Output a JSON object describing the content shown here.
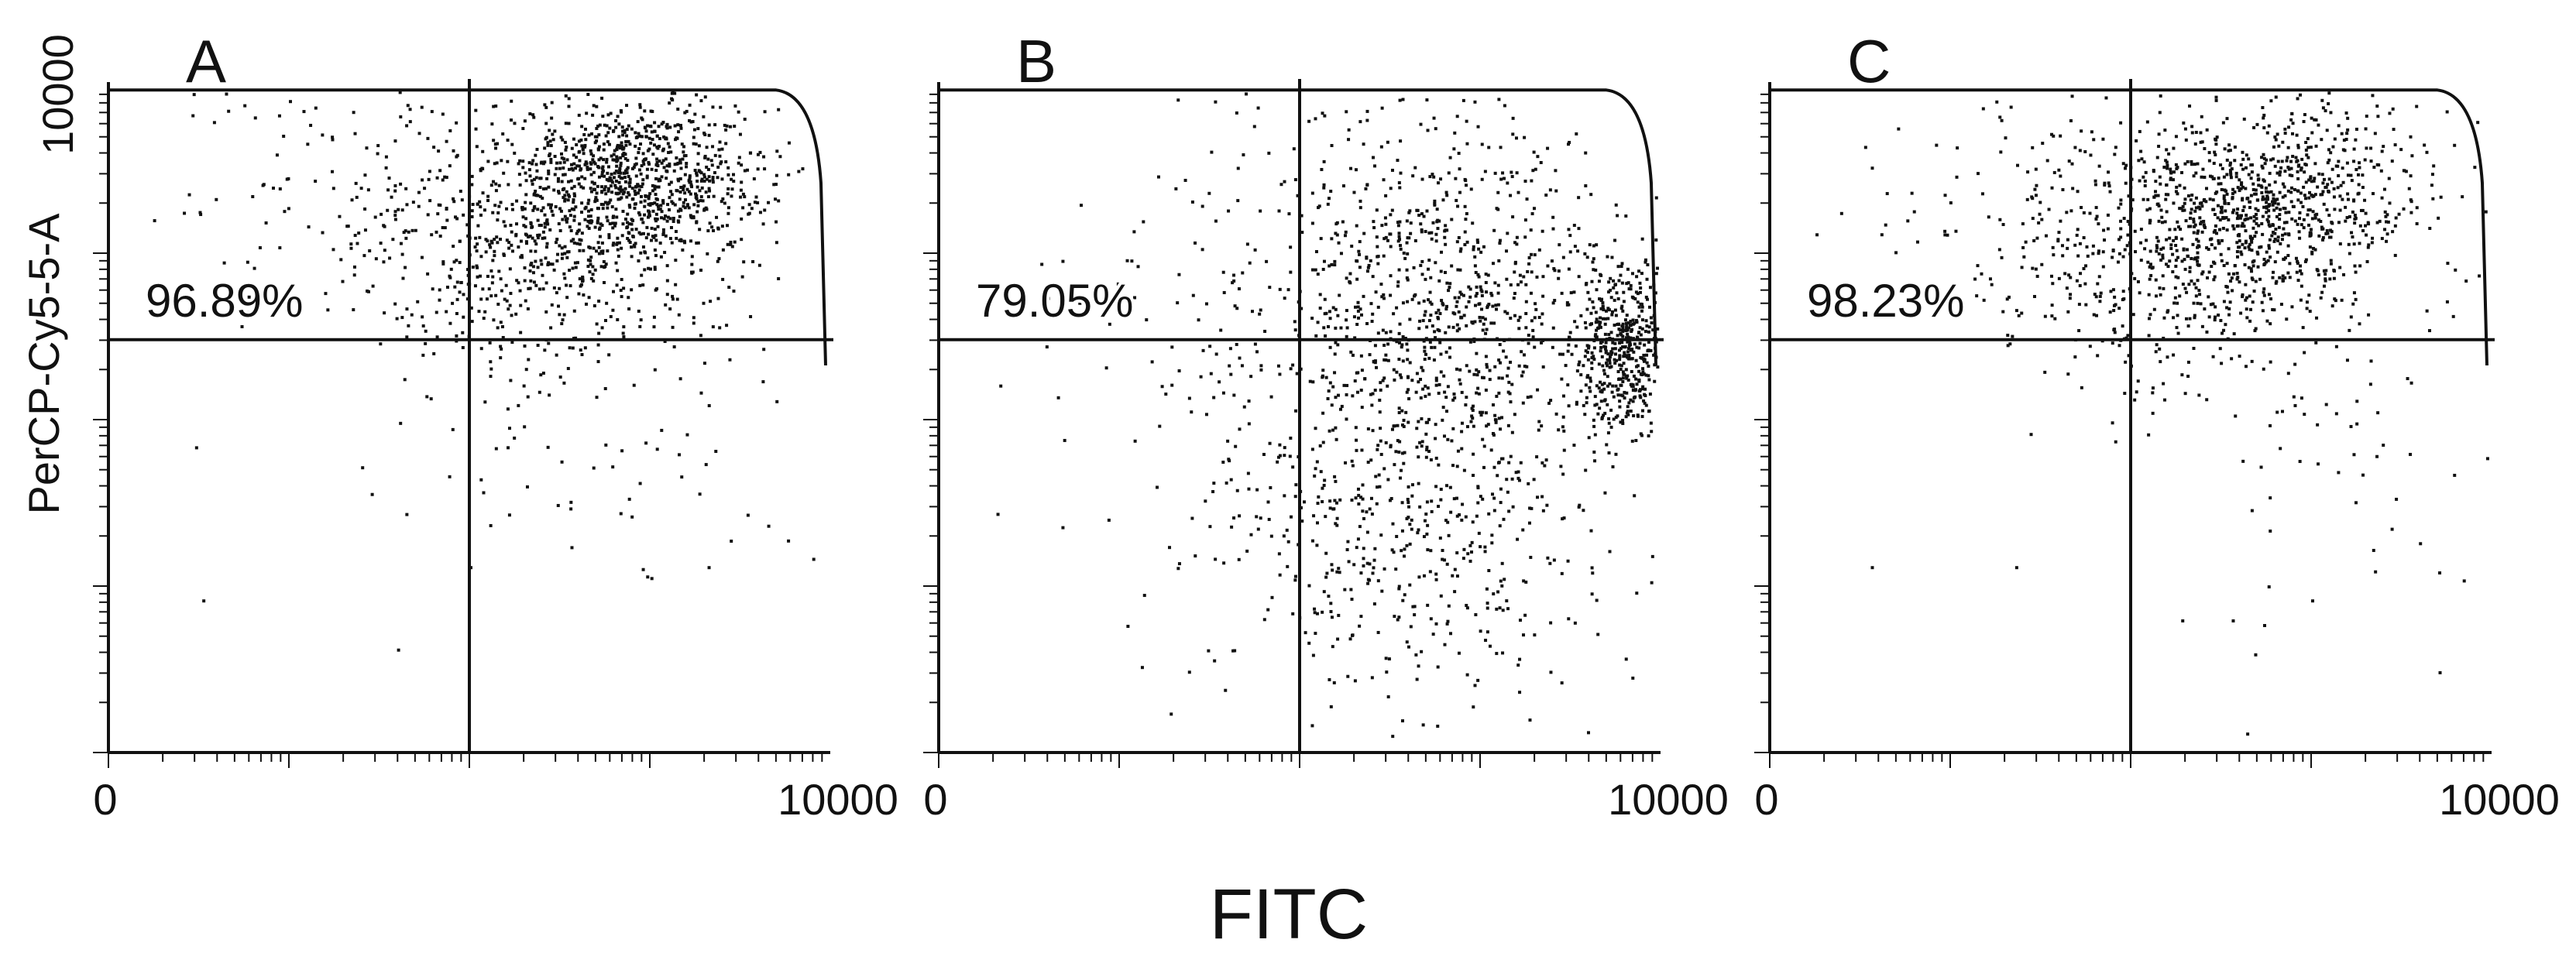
{
  "figure": {
    "xlabel": "FITC",
    "ylabel": "PerCP-Cy5-5-A"
  },
  "colors": {
    "axis": "#111111",
    "points": "#111111",
    "background": "#ffffff"
  },
  "chart_data": [
    {
      "type": "scatter",
      "panel": "A",
      "gate_percent": "96.89%",
      "xlim": [
        0,
        10000
      ],
      "ylim": [
        0,
        10000
      ],
      "x_tick_labels": [
        "0",
        "10000"
      ],
      "y_tick_labels": [
        "10000"
      ],
      "quadrant_divider": {
        "x": 5000,
        "y": 6200
      },
      "clusters": [
        {
          "cx": 7300,
          "cy": 8600,
          "sx": 900,
          "sy": 650,
          "n": 950
        },
        {
          "cx": 5900,
          "cy": 7600,
          "sx": 1300,
          "sy": 1000,
          "n": 520
        },
        {
          "cx": 4200,
          "cy": 8300,
          "sx": 1900,
          "sy": 1000,
          "n": 160
        },
        {
          "cx": 6800,
          "cy": 4800,
          "sx": 1500,
          "sy": 1200,
          "n": 70
        }
      ],
      "outliers": [
        [
          1200,
          4600
        ],
        [
          3500,
          4300
        ],
        [
          1300,
          2300
        ],
        [
          5000,
          2800
        ],
        [
          6400,
          3100
        ],
        [
          8300,
          2800
        ],
        [
          9400,
          3200
        ],
        [
          1100,
          8400
        ],
        [
          2500,
          9800
        ]
      ]
    },
    {
      "type": "scatter",
      "panel": "B",
      "gate_percent": "79.05%",
      "xlim": [
        0,
        10000
      ],
      "ylim": [
        0,
        10000
      ],
      "x_tick_labels": [
        "0",
        "10000"
      ],
      "quadrant_divider": {
        "x": 5000,
        "y": 6200
      },
      "clusters": [
        {
          "cx": 9500,
          "cy": 6000,
          "sx": 350,
          "sy": 650,
          "n": 480
        },
        {
          "cx": 7000,
          "cy": 6800,
          "sx": 1400,
          "sy": 1400,
          "n": 900
        },
        {
          "cx": 6600,
          "cy": 3500,
          "sx": 1400,
          "sy": 1500,
          "n": 480
        },
        {
          "cx": 4600,
          "cy": 5800,
          "sx": 1600,
          "sy": 2200,
          "n": 150
        }
      ],
      "outliers": [
        [
          1700,
          7400
        ],
        [
          800,
          3600
        ],
        [
          1700,
          3400
        ],
        [
          2700,
          4700
        ],
        [
          2800,
          1300
        ],
        [
          3200,
          600
        ],
        [
          3800,
          1400
        ],
        [
          4200,
          9000
        ]
      ]
    },
    {
      "type": "scatter",
      "panel": "C",
      "gate_percent": "98.23%",
      "xlim": [
        0,
        10000
      ],
      "ylim": [
        0,
        10000
      ],
      "x_tick_labels": [
        "0",
        "10000"
      ],
      "quadrant_divider": {
        "x": 5000,
        "y": 6200
      },
      "clusters": [
        {
          "cx": 6900,
          "cy": 8300,
          "sx": 1100,
          "sy": 800,
          "n": 820
        },
        {
          "cx": 5600,
          "cy": 7300,
          "sx": 1200,
          "sy": 900,
          "n": 420
        },
        {
          "cx": 3900,
          "cy": 8100,
          "sx": 1500,
          "sy": 900,
          "n": 130
        },
        {
          "cx": 7600,
          "cy": 4800,
          "sx": 1400,
          "sy": 1300,
          "n": 60
        }
      ],
      "outliers": [
        [
          1400,
          8800
        ],
        [
          3600,
          4800
        ],
        [
          1400,
          2800
        ],
        [
          3400,
          2800
        ],
        [
          5700,
          2000
        ],
        [
          6400,
          2000
        ],
        [
          7500,
          2300
        ],
        [
          9600,
          2600
        ],
        [
          6600,
          300
        ]
      ]
    }
  ]
}
